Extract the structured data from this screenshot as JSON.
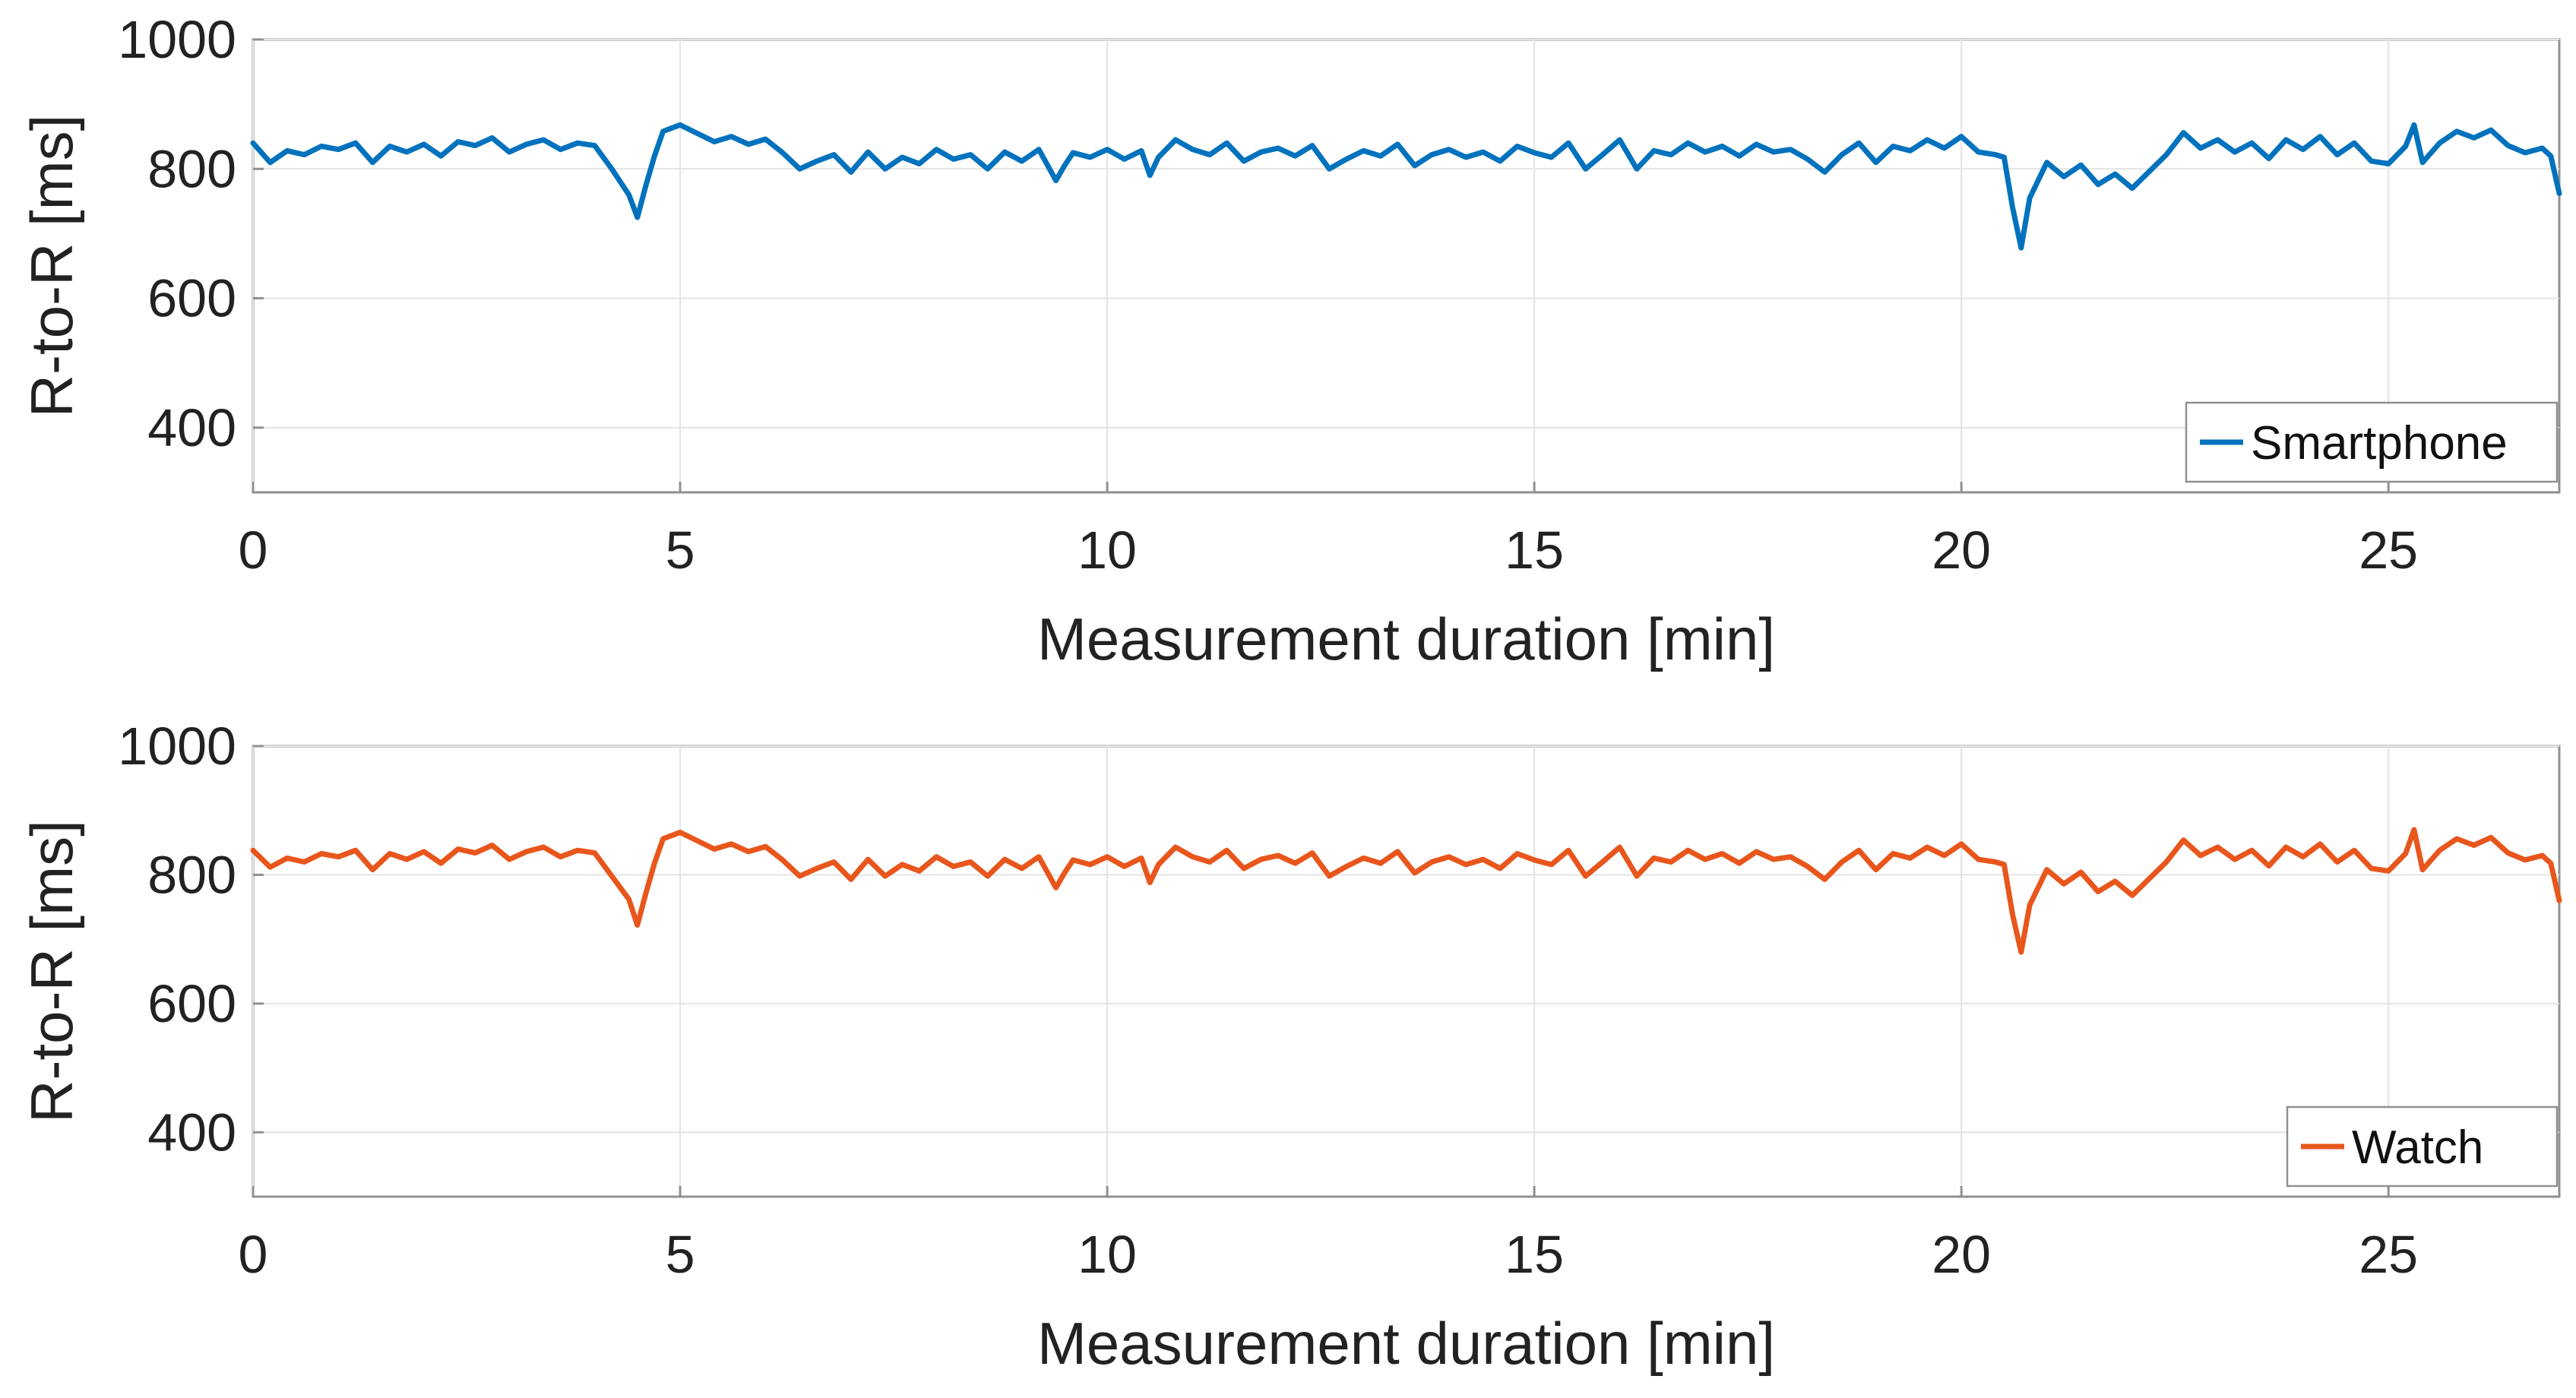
{
  "chart_data": [
    {
      "type": "line",
      "xlabel": "Measurement duration [min]",
      "ylabel": "R-to-R [ms]",
      "xlim": [
        0,
        27
      ],
      "ylim": [
        300,
        1000
      ],
      "xticks": [
        0,
        5,
        10,
        15,
        20,
        25
      ],
      "yticks": [
        400,
        600,
        800,
        1000
      ],
      "grid": true,
      "legend": "bottom-right",
      "series": [
        {
          "name": "Smartphone",
          "color": "#0072BD",
          "x": [
            0,
            0.2,
            0.4,
            0.6,
            0.8,
            1.0,
            1.2,
            1.4,
            1.6,
            1.8,
            2.0,
            2.2,
            2.4,
            2.6,
            2.8,
            3.0,
            3.2,
            3.4,
            3.6,
            3.8,
            4.0,
            4.2,
            4.4,
            4.5,
            4.6,
            4.7,
            4.8,
            5.0,
            5.2,
            5.4,
            5.6,
            5.8,
            6.0,
            6.2,
            6.4,
            6.6,
            6.8,
            7.0,
            7.2,
            7.4,
            7.6,
            7.8,
            8.0,
            8.2,
            8.4,
            8.6,
            8.8,
            9.0,
            9.2,
            9.4,
            9.5,
            9.6,
            9.8,
            10.0,
            10.2,
            10.4,
            10.5,
            10.6,
            10.8,
            11.0,
            11.2,
            11.4,
            11.6,
            11.8,
            12.0,
            12.2,
            12.4,
            12.6,
            12.8,
            13.0,
            13.2,
            13.4,
            13.6,
            13.8,
            14.0,
            14.2,
            14.4,
            14.6,
            14.8,
            15.0,
            15.2,
            15.4,
            15.6,
            15.8,
            16.0,
            16.2,
            16.4,
            16.6,
            16.8,
            17.0,
            17.2,
            17.4,
            17.6,
            17.8,
            18.0,
            18.2,
            18.4,
            18.6,
            18.8,
            19.0,
            19.2,
            19.4,
            19.6,
            19.8,
            20.0,
            20.2,
            20.4,
            20.5,
            20.6,
            20.7,
            20.8,
            21.0,
            21.2,
            21.4,
            21.6,
            21.8,
            22.0,
            22.2,
            22.4,
            22.6,
            22.8,
            23.0,
            23.2,
            23.4,
            23.6,
            23.8,
            24.0,
            24.2,
            24.4,
            24.6,
            24.8,
            25.0,
            25.2,
            25.3,
            25.4,
            25.6,
            25.8,
            26.0,
            26.2,
            26.4,
            26.6,
            26.8,
            26.9,
            27.0
          ],
          "y": [
            840,
            810,
            828,
            822,
            835,
            830,
            840,
            810,
            835,
            826,
            838,
            820,
            842,
            836,
            848,
            826,
            838,
            845,
            830,
            840,
            836,
            800,
            760,
            725,
            775,
            820,
            858,
            868,
            855,
            842,
            850,
            838,
            846,
            825,
            800,
            812,
            822,
            795,
            826,
            800,
            818,
            808,
            830,
            815,
            822,
            800,
            826,
            812,
            830,
            782,
            805,
            825,
            818,
            830,
            815,
            828,
            790,
            818,
            845,
            830,
            822,
            840,
            812,
            826,
            832,
            820,
            836,
            800,
            815,
            828,
            820,
            838,
            805,
            822,
            830,
            818,
            826,
            812,
            835,
            825,
            818,
            840,
            800,
            822,
            845,
            800,
            828,
            822,
            840,
            826,
            835,
            820,
            838,
            826,
            830,
            815,
            795,
            822,
            840,
            810,
            835,
            828,
            845,
            832,
            850,
            826,
            822,
            818,
            740,
            678,
            755,
            810,
            788,
            806,
            776,
            792,
            770,
            796,
            822,
            856,
            832,
            845,
            826,
            840,
            816,
            845,
            830,
            850,
            822,
            840,
            812,
            808,
            835,
            868,
            810,
            840,
            858,
            848,
            860,
            836,
            825,
            832,
            820,
            762
          ]
        }
      ]
    },
    {
      "type": "line",
      "xlabel": "Measurement duration [min]",
      "ylabel": "R-to-R [ms]",
      "xlim": [
        0,
        27
      ],
      "ylim": [
        300,
        1000
      ],
      "xticks": [
        0,
        5,
        10,
        15,
        20,
        25
      ],
      "yticks": [
        400,
        600,
        800,
        1000
      ],
      "grid": true,
      "legend": "bottom-right",
      "series": [
        {
          "name": "Watch",
          "color": "#E8561C",
          "x": [
            0,
            0.2,
            0.4,
            0.6,
            0.8,
            1.0,
            1.2,
            1.4,
            1.6,
            1.8,
            2.0,
            2.2,
            2.4,
            2.6,
            2.8,
            3.0,
            3.2,
            3.4,
            3.6,
            3.8,
            4.0,
            4.2,
            4.4,
            4.5,
            4.6,
            4.7,
            4.8,
            5.0,
            5.2,
            5.4,
            5.6,
            5.8,
            6.0,
            6.2,
            6.4,
            6.6,
            6.8,
            7.0,
            7.2,
            7.4,
            7.6,
            7.8,
            8.0,
            8.2,
            8.4,
            8.6,
            8.8,
            9.0,
            9.2,
            9.4,
            9.5,
            9.6,
            9.8,
            10.0,
            10.2,
            10.4,
            10.5,
            10.6,
            10.8,
            11.0,
            11.2,
            11.4,
            11.6,
            11.8,
            12.0,
            12.2,
            12.4,
            12.6,
            12.8,
            13.0,
            13.2,
            13.4,
            13.6,
            13.8,
            14.0,
            14.2,
            14.4,
            14.6,
            14.8,
            15.0,
            15.2,
            15.4,
            15.6,
            15.8,
            16.0,
            16.2,
            16.4,
            16.6,
            16.8,
            17.0,
            17.2,
            17.4,
            17.6,
            17.8,
            18.0,
            18.2,
            18.4,
            18.6,
            18.8,
            19.0,
            19.2,
            19.4,
            19.6,
            19.8,
            20.0,
            20.2,
            20.4,
            20.5,
            20.6,
            20.7,
            20.8,
            21.0,
            21.2,
            21.4,
            21.6,
            21.8,
            22.0,
            22.2,
            22.4,
            22.6,
            22.8,
            23.0,
            23.2,
            23.4,
            23.6,
            23.8,
            24.0,
            24.2,
            24.4,
            24.6,
            24.8,
            25.0,
            25.2,
            25.3,
            25.4,
            25.6,
            25.8,
            26.0,
            26.2,
            26.4,
            26.6,
            26.8,
            26.9,
            27.0
          ],
          "y": [
            838,
            812,
            826,
            820,
            833,
            828,
            838,
            808,
            833,
            824,
            836,
            818,
            840,
            834,
            846,
            824,
            836,
            843,
            828,
            838,
            834,
            798,
            762,
            722,
            772,
            818,
            856,
            866,
            853,
            840,
            848,
            836,
            844,
            823,
            798,
            810,
            820,
            793,
            824,
            798,
            816,
            806,
            828,
            813,
            820,
            798,
            824,
            810,
            828,
            780,
            803,
            823,
            816,
            828,
            813,
            826,
            788,
            816,
            843,
            828,
            820,
            838,
            810,
            824,
            830,
            818,
            834,
            798,
            813,
            826,
            818,
            836,
            803,
            820,
            828,
            816,
            824,
            810,
            833,
            823,
            816,
            838,
            798,
            820,
            843,
            798,
            826,
            820,
            838,
            824,
            833,
            818,
            836,
            824,
            828,
            813,
            793,
            820,
            838,
            808,
            833,
            826,
            843,
            830,
            848,
            824,
            820,
            816,
            738,
            680,
            753,
            808,
            786,
            804,
            774,
            790,
            768,
            794,
            820,
            854,
            830,
            843,
            824,
            838,
            814,
            843,
            828,
            848,
            820,
            838,
            810,
            806,
            833,
            870,
            808,
            838,
            856,
            846,
            858,
            834,
            823,
            830,
            818,
            760
          ]
        }
      ]
    }
  ]
}
